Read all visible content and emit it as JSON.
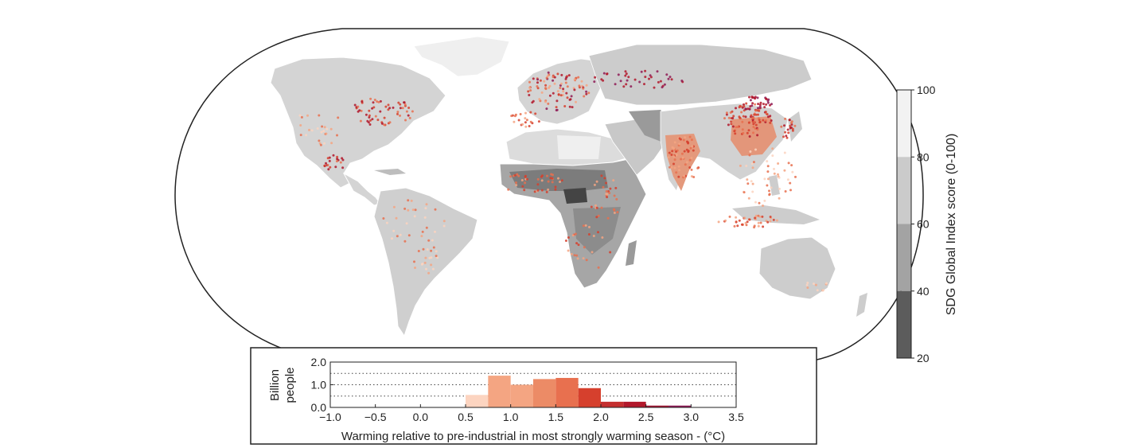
{
  "colorbar": {
    "label": "SDG Global Index score (0-100)",
    "ticks": [
      20,
      40,
      60,
      80,
      100
    ],
    "bands": [
      {
        "from": 80,
        "to": 100,
        "color": "#f2f2f2"
      },
      {
        "from": 60,
        "to": 80,
        "color": "#cbcbcb"
      },
      {
        "from": 40,
        "to": 60,
        "color": "#a3a3a3"
      },
      {
        "from": 20,
        "to": 40,
        "color": "#5c5c5c"
      }
    ]
  },
  "map": {
    "background": "#ffffff",
    "land_colors": {
      "light": "#d4d4d4",
      "mid": "#aaaaaa",
      "dark": "#7c7c7c",
      "darkest": "#444444",
      "ice": "#efefef"
    },
    "warming_colors": [
      "#fcd4c0",
      "#f4a582",
      "#e8704f",
      "#d6402d",
      "#b2182b",
      "#8e1a55"
    ]
  },
  "chart_data": {
    "type": "bar",
    "xlabel": "Warming relative to pre-industrial in most strongly warming season - (°C)",
    "ylabel": [
      "Billion",
      "people"
    ],
    "xlim": [
      -1.0,
      3.5
    ],
    "ylim": [
      0.0,
      2.0
    ],
    "xticks": [
      "-1.0",
      "-0.5",
      "0.0",
      "0.5",
      "1.0",
      "1.5",
      "2.0",
      "2.5",
      "3.0",
      "3.5"
    ],
    "yticks": [
      "0.0",
      "1.0",
      "2.0"
    ],
    "grid_y": [
      0.5,
      1.0,
      1.5
    ],
    "bin_width": 0.25,
    "bins": [
      {
        "x": 0.5,
        "value": 0.55,
        "color": "#fcd4c0"
      },
      {
        "x": 0.75,
        "value": 1.4,
        "color": "#f4a582"
      },
      {
        "x": 1.0,
        "value": 1.0,
        "color": "#f4a582"
      },
      {
        "x": 1.25,
        "value": 1.25,
        "color": "#ec8b66"
      },
      {
        "x": 1.5,
        "value": 1.3,
        "color": "#e8704f"
      },
      {
        "x": 1.75,
        "value": 0.85,
        "color": "#d6402d"
      },
      {
        "x": 2.0,
        "value": 0.25,
        "color": "#c42f2f"
      },
      {
        "x": 2.25,
        "value": 0.25,
        "color": "#b2182b"
      },
      {
        "x": 2.5,
        "value": 0.08,
        "color": "#a01633"
      },
      {
        "x": 2.75,
        "value": 0.08,
        "color": "#8e1a55"
      }
    ]
  }
}
